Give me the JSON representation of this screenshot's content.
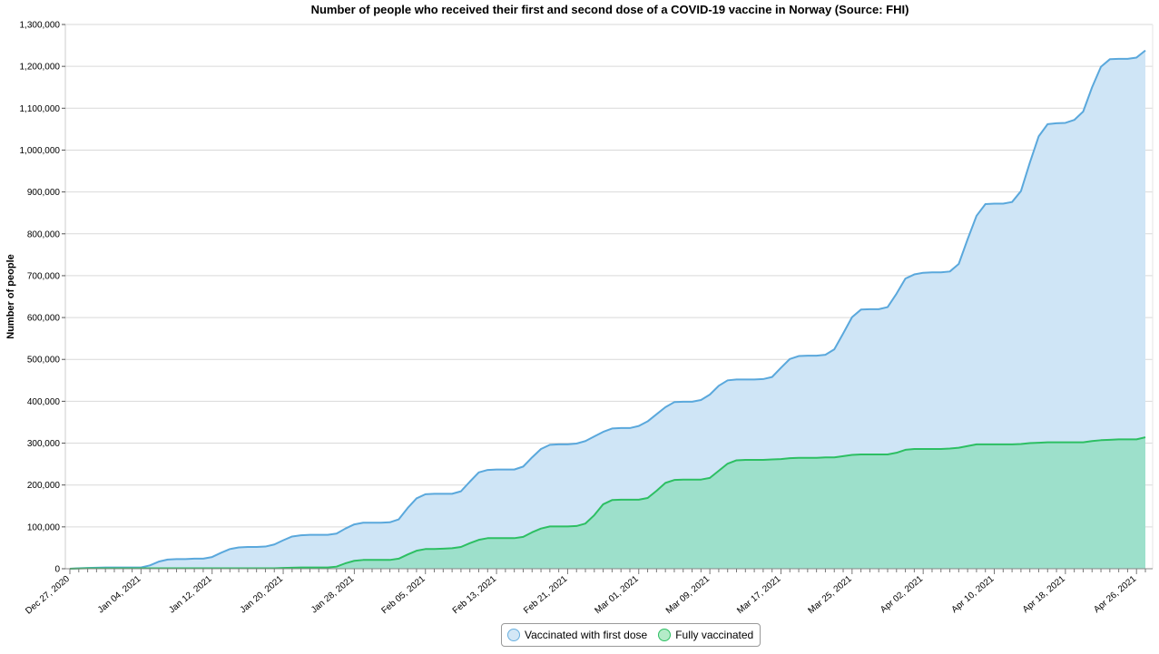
{
  "chart_data": {
    "type": "area",
    "title": "Number of people who received their first and second dose of a COVID-19 vaccine in Norway (Source: FHI)",
    "ylabel": "Number of people",
    "xlabel": "",
    "ylim": [
      0,
      1300000
    ],
    "grid": true,
    "legend": "bottom-center",
    "x_start": "2020-12-27",
    "x_ticks": [
      "Dec 27, 2020",
      "Jan 04, 2021",
      "Jan 12, 2021",
      "Jan 20, 2021",
      "Jan 28, 2021",
      "Feb 05, 2021",
      "Feb 13, 2021",
      "Feb 21, 2021",
      "Mar 01, 2021",
      "Mar 09, 2021",
      "Mar 17, 2021",
      "Mar 25, 2021",
      "Apr 02, 2021",
      "Apr 10, 2021",
      "Apr 18, 2021",
      "Apr 26, 2021"
    ],
    "y_ticks": [
      "0",
      "100,000",
      "200,000",
      "300,000",
      "400,000",
      "500,000",
      "600,000",
      "700,000",
      "800,000",
      "900,000",
      "1,000,000",
      "1,100,000",
      "1,200,000",
      "1,300,000"
    ],
    "series": [
      {
        "name": "Vaccinated with first dose",
        "line_color": "#5aa8dc",
        "fill_color": "#cfe5f6",
        "points": [
          [
            "2020-12-27",
            0
          ],
          [
            "2020-12-28",
            1000
          ],
          [
            "2020-12-29",
            2000
          ],
          [
            "2020-12-30",
            2500
          ],
          [
            "2020-12-31",
            3000
          ],
          [
            "2021-01-01",
            3000
          ],
          [
            "2021-01-02",
            3000
          ],
          [
            "2021-01-03",
            3000
          ],
          [
            "2021-01-04",
            3000
          ],
          [
            "2021-01-05",
            8000
          ],
          [
            "2021-01-06",
            17000
          ],
          [
            "2021-01-07",
            22000
          ],
          [
            "2021-01-08",
            23000
          ],
          [
            "2021-01-09",
            23000
          ],
          [
            "2021-01-10",
            24000
          ],
          [
            "2021-01-11",
            24000
          ],
          [
            "2021-01-12",
            28000
          ],
          [
            "2021-01-13",
            38000
          ],
          [
            "2021-01-14",
            47000
          ],
          [
            "2021-01-15",
            51000
          ],
          [
            "2021-01-16",
            52000
          ],
          [
            "2021-01-17",
            52000
          ],
          [
            "2021-01-18",
            53000
          ],
          [
            "2021-01-19",
            58000
          ],
          [
            "2021-01-20",
            68000
          ],
          [
            "2021-01-21",
            77000
          ],
          [
            "2021-01-22",
            80000
          ],
          [
            "2021-01-23",
            81000
          ],
          [
            "2021-01-24",
            81000
          ],
          [
            "2021-01-25",
            81000
          ],
          [
            "2021-01-26",
            84000
          ],
          [
            "2021-01-27",
            96000
          ],
          [
            "2021-01-28",
            106000
          ],
          [
            "2021-01-29",
            110000
          ],
          [
            "2021-01-30",
            110000
          ],
          [
            "2021-01-31",
            110000
          ],
          [
            "2021-02-01",
            111000
          ],
          [
            "2021-02-02",
            118000
          ],
          [
            "2021-02-03",
            145000
          ],
          [
            "2021-02-04",
            168000
          ],
          [
            "2021-02-05",
            178000
          ],
          [
            "2021-02-06",
            179000
          ],
          [
            "2021-02-07",
            179000
          ],
          [
            "2021-02-08",
            179000
          ],
          [
            "2021-02-09",
            185000
          ],
          [
            "2021-02-10",
            208000
          ],
          [
            "2021-02-11",
            230000
          ],
          [
            "2021-02-12",
            236000
          ],
          [
            "2021-02-13",
            237000
          ],
          [
            "2021-02-14",
            237000
          ],
          [
            "2021-02-15",
            237000
          ],
          [
            "2021-02-16",
            244000
          ],
          [
            "2021-02-17",
            266000
          ],
          [
            "2021-02-18",
            286000
          ],
          [
            "2021-02-19",
            296000
          ],
          [
            "2021-02-20",
            297000
          ],
          [
            "2021-02-21",
            297000
          ],
          [
            "2021-02-22",
            299000
          ],
          [
            "2021-02-23",
            305000
          ],
          [
            "2021-02-24",
            316000
          ],
          [
            "2021-02-25",
            327000
          ],
          [
            "2021-02-26",
            335000
          ],
          [
            "2021-02-27",
            336000
          ],
          [
            "2021-02-28",
            336000
          ],
          [
            "2021-03-01",
            341000
          ],
          [
            "2021-03-02",
            352000
          ],
          [
            "2021-03-03",
            369000
          ],
          [
            "2021-03-04",
            386000
          ],
          [
            "2021-03-05",
            398000
          ],
          [
            "2021-03-06",
            399000
          ],
          [
            "2021-03-07",
            399000
          ],
          [
            "2021-03-08",
            403000
          ],
          [
            "2021-03-09",
            416000
          ],
          [
            "2021-03-10",
            437000
          ],
          [
            "2021-03-11",
            450000
          ],
          [
            "2021-03-12",
            452000
          ],
          [
            "2021-03-13",
            452000
          ],
          [
            "2021-03-14",
            452000
          ],
          [
            "2021-03-15",
            453000
          ],
          [
            "2021-03-16",
            458000
          ],
          [
            "2021-03-17",
            480000
          ],
          [
            "2021-03-18",
            501000
          ],
          [
            "2021-03-19",
            508000
          ],
          [
            "2021-03-20",
            509000
          ],
          [
            "2021-03-21",
            509000
          ],
          [
            "2021-03-22",
            511000
          ],
          [
            "2021-03-23",
            524000
          ],
          [
            "2021-03-24",
            562000
          ],
          [
            "2021-03-25",
            601000
          ],
          [
            "2021-03-26",
            619000
          ],
          [
            "2021-03-27",
            620000
          ],
          [
            "2021-03-28",
            620000
          ],
          [
            "2021-03-29",
            625000
          ],
          [
            "2021-03-30",
            657000
          ],
          [
            "2021-03-31",
            693000
          ],
          [
            "2021-04-01",
            703000
          ],
          [
            "2021-04-02",
            707000
          ],
          [
            "2021-04-03",
            708000
          ],
          [
            "2021-04-04",
            708000
          ],
          [
            "2021-04-05",
            710000
          ],
          [
            "2021-04-06",
            728000
          ],
          [
            "2021-04-07",
            787000
          ],
          [
            "2021-04-08",
            843000
          ],
          [
            "2021-04-09",
            871000
          ],
          [
            "2021-04-10",
            872000
          ],
          [
            "2021-04-11",
            872000
          ],
          [
            "2021-04-12",
            876000
          ],
          [
            "2021-04-13",
            902000
          ],
          [
            "2021-04-14",
            970000
          ],
          [
            "2021-04-15",
            1033000
          ],
          [
            "2021-04-16",
            1062000
          ],
          [
            "2021-04-17",
            1064000
          ],
          [
            "2021-04-18",
            1065000
          ],
          [
            "2021-04-19",
            1072000
          ],
          [
            "2021-04-20",
            1092000
          ],
          [
            "2021-04-21",
            1150000
          ],
          [
            "2021-04-22",
            1199000
          ],
          [
            "2021-04-23",
            1217000
          ],
          [
            "2021-04-24",
            1218000
          ],
          [
            "2021-04-25",
            1218000
          ],
          [
            "2021-04-26",
            1221000
          ],
          [
            "2021-04-27",
            1238000
          ]
        ]
      },
      {
        "name": "Fully vaccinated",
        "line_color": "#2dbf63",
        "fill_color": "#9de0cb",
        "points": [
          [
            "2020-12-27",
            0
          ],
          [
            "2020-12-28",
            500
          ],
          [
            "2020-12-29",
            1000
          ],
          [
            "2020-12-30",
            1000
          ],
          [
            "2020-12-31",
            1000
          ],
          [
            "2021-01-01",
            1000
          ],
          [
            "2021-01-02",
            1000
          ],
          [
            "2021-01-03",
            1000
          ],
          [
            "2021-01-04",
            1000
          ],
          [
            "2021-01-05",
            1000
          ],
          [
            "2021-01-06",
            1000
          ],
          [
            "2021-01-07",
            1000
          ],
          [
            "2021-01-08",
            1000
          ],
          [
            "2021-01-09",
            1000
          ],
          [
            "2021-01-10",
            1000
          ],
          [
            "2021-01-11",
            1000
          ],
          [
            "2021-01-12",
            1000
          ],
          [
            "2021-01-13",
            1000
          ],
          [
            "2021-01-14",
            1000
          ],
          [
            "2021-01-15",
            1000
          ],
          [
            "2021-01-16",
            1000
          ],
          [
            "2021-01-17",
            1000
          ],
          [
            "2021-01-18",
            1000
          ],
          [
            "2021-01-19",
            1000
          ],
          [
            "2021-01-20",
            2000
          ],
          [
            "2021-01-21",
            2500
          ],
          [
            "2021-01-22",
            3000
          ],
          [
            "2021-01-23",
            3000
          ],
          [
            "2021-01-24",
            3000
          ],
          [
            "2021-01-25",
            3000
          ],
          [
            "2021-01-26",
            5000
          ],
          [
            "2021-01-27",
            13000
          ],
          [
            "2021-01-28",
            19000
          ],
          [
            "2021-01-29",
            21000
          ],
          [
            "2021-01-30",
            21000
          ],
          [
            "2021-01-31",
            21000
          ],
          [
            "2021-02-01",
            21000
          ],
          [
            "2021-02-02",
            24000
          ],
          [
            "2021-02-03",
            34000
          ],
          [
            "2021-02-04",
            43000
          ],
          [
            "2021-02-05",
            47000
          ],
          [
            "2021-02-06",
            47000
          ],
          [
            "2021-02-07",
            48000
          ],
          [
            "2021-02-08",
            49000
          ],
          [
            "2021-02-09",
            52000
          ],
          [
            "2021-02-10",
            61000
          ],
          [
            "2021-02-11",
            69000
          ],
          [
            "2021-02-12",
            73000
          ],
          [
            "2021-02-13",
            73000
          ],
          [
            "2021-02-14",
            73000
          ],
          [
            "2021-02-15",
            73000
          ],
          [
            "2021-02-16",
            76000
          ],
          [
            "2021-02-17",
            87000
          ],
          [
            "2021-02-18",
            96000
          ],
          [
            "2021-02-19",
            101000
          ],
          [
            "2021-02-20",
            101000
          ],
          [
            "2021-02-21",
            101000
          ],
          [
            "2021-02-22",
            102000
          ],
          [
            "2021-02-23",
            108000
          ],
          [
            "2021-02-24",
            128000
          ],
          [
            "2021-02-25",
            154000
          ],
          [
            "2021-02-26",
            164000
          ],
          [
            "2021-02-27",
            165000
          ],
          [
            "2021-02-28",
            165000
          ],
          [
            "2021-03-01",
            165000
          ],
          [
            "2021-03-02",
            169000
          ],
          [
            "2021-03-03",
            186000
          ],
          [
            "2021-03-04",
            205000
          ],
          [
            "2021-03-05",
            212000
          ],
          [
            "2021-03-06",
            213000
          ],
          [
            "2021-03-07",
            213000
          ],
          [
            "2021-03-08",
            213000
          ],
          [
            "2021-03-09",
            217000
          ],
          [
            "2021-03-10",
            234000
          ],
          [
            "2021-03-11",
            251000
          ],
          [
            "2021-03-12",
            259000
          ],
          [
            "2021-03-13",
            260000
          ],
          [
            "2021-03-14",
            260000
          ],
          [
            "2021-03-15",
            260000
          ],
          [
            "2021-03-16",
            261000
          ],
          [
            "2021-03-17",
            262000
          ],
          [
            "2021-03-18",
            264000
          ],
          [
            "2021-03-19",
            265000
          ],
          [
            "2021-03-20",
            265000
          ],
          [
            "2021-03-21",
            265000
          ],
          [
            "2021-03-22",
            266000
          ],
          [
            "2021-03-23",
            266000
          ],
          [
            "2021-03-24",
            269000
          ],
          [
            "2021-03-25",
            272000
          ],
          [
            "2021-03-26",
            273000
          ],
          [
            "2021-03-27",
            273000
          ],
          [
            "2021-03-28",
            273000
          ],
          [
            "2021-03-29",
            273000
          ],
          [
            "2021-03-30",
            277000
          ],
          [
            "2021-03-31",
            284000
          ],
          [
            "2021-04-01",
            286000
          ],
          [
            "2021-04-02",
            286000
          ],
          [
            "2021-04-03",
            286000
          ],
          [
            "2021-04-04",
            286000
          ],
          [
            "2021-04-05",
            287000
          ],
          [
            "2021-04-06",
            289000
          ],
          [
            "2021-04-07",
            293000
          ],
          [
            "2021-04-08",
            297000
          ],
          [
            "2021-04-09",
            297000
          ],
          [
            "2021-04-10",
            297000
          ],
          [
            "2021-04-11",
            297000
          ],
          [
            "2021-04-12",
            297000
          ],
          [
            "2021-04-13",
            298000
          ],
          [
            "2021-04-14",
            300000
          ],
          [
            "2021-04-15",
            301000
          ],
          [
            "2021-04-16",
            302000
          ],
          [
            "2021-04-17",
            302000
          ],
          [
            "2021-04-18",
            302000
          ],
          [
            "2021-04-19",
            302000
          ],
          [
            "2021-04-20",
            302000
          ],
          [
            "2021-04-21",
            305000
          ],
          [
            "2021-04-22",
            307000
          ],
          [
            "2021-04-23",
            308000
          ],
          [
            "2021-04-24",
            309000
          ],
          [
            "2021-04-25",
            309000
          ],
          [
            "2021-04-26",
            309000
          ],
          [
            "2021-04-27",
            314000
          ]
        ]
      }
    ]
  }
}
